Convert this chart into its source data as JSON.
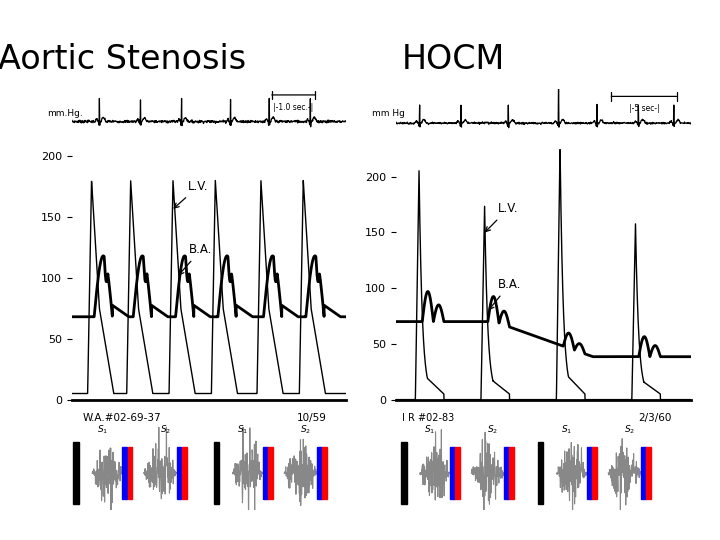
{
  "title_left": "Aortic Stenosis",
  "title_right": "HOCM",
  "title_fontsize": 24,
  "bg_color": "#ffffff",
  "left_label_bottom": "W.A.#02-69-37",
  "left_label_date": "10/59",
  "right_label_bottom": "I R #02-83",
  "right_label_date": "2/3/60",
  "left_time_label": "|-1.0 sec.-|",
  "right_time_label": "|-5 sec-|",
  "lv_label": "L.V.",
  "ba_label": "B.A.",
  "mmhg_label_left": "mm.Hg.",
  "mmhg_label_right": "mm Hg",
  "yticks": [
    0,
    50,
    100,
    150,
    200
  ]
}
